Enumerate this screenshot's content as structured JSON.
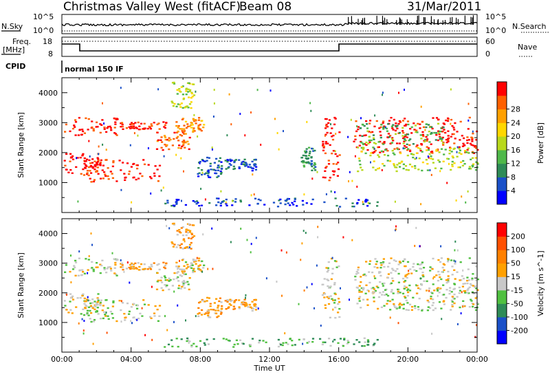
{
  "header": {
    "title": "Christmas Valley West (fitACF)",
    "beam": "Beam 08",
    "date": "31/Mar/2011"
  },
  "strip": {
    "nsky_label": "N.Sky",
    "nsearch_label": "N.Search",
    "nsky_ticks": [
      "10^5",
      "10^0"
    ],
    "nsearch_ticks": [
      "10^5",
      "10^0"
    ],
    "freq_label": [
      "Freq.",
      "[MHz]"
    ],
    "freq_ticks": [
      "18",
      "8"
    ],
    "nave_label": "Nave",
    "nave_ticks": [
      "60",
      "0"
    ],
    "cpid_label": "CPID",
    "cpid_text": "normal 150 IF"
  },
  "chart_data": [
    {
      "type": "heatmap",
      "name": "power",
      "ylabel": "Slant Range [km]",
      "xlabel": "",
      "ylim": [
        0,
        4500
      ],
      "xlim": [
        0,
        24
      ],
      "yticks": [
        1000,
        2000,
        3000,
        4000
      ],
      "colorbar": {
        "label": "Power [dB]",
        "ticks": [
          "4",
          "8",
          "12",
          "16",
          "20",
          "24",
          "28"
        ],
        "colors": [
          "#0000ff",
          "#1a50c8",
          "#2e8b57",
          "#4fb84a",
          "#b8d81c",
          "#ffd700",
          "#ffa000",
          "#ff6000",
          "#ff0000"
        ]
      },
      "regions": [
        {
          "t0": 0.1,
          "t1": 3.4,
          "r0": 2600,
          "r1": 3200,
          "c": 8
        },
        {
          "t0": 0.1,
          "t1": 2.2,
          "r0": 1300,
          "r1": 2000,
          "c": 8
        },
        {
          "t0": 1.2,
          "t1": 5.6,
          "r0": 1050,
          "r1": 1800,
          "c": 8
        },
        {
          "t0": 3.0,
          "t1": 6.0,
          "r0": 2800,
          "r1": 3050,
          "c": 8
        },
        {
          "t0": 5.4,
          "t1": 7.4,
          "r0": 2100,
          "r1": 2700,
          "c": 7
        },
        {
          "t0": 6.5,
          "t1": 8.2,
          "r0": 2700,
          "r1": 3200,
          "c": 6
        },
        {
          "t0": 6.2,
          "t1": 7.6,
          "r0": 3500,
          "r1": 4400,
          "c": 4
        },
        {
          "t0": 7.8,
          "t1": 9.2,
          "r0": 1200,
          "r1": 1900,
          "c": 1
        },
        {
          "t0": 9.4,
          "t1": 11.2,
          "r0": 1400,
          "r1": 1800,
          "c": 1
        },
        {
          "t0": 13.8,
          "t1": 14.6,
          "r0": 1400,
          "r1": 2200,
          "c": 2
        },
        {
          "t0": 15.0,
          "t1": 16.0,
          "r0": 1100,
          "r1": 3200,
          "c": 8
        },
        {
          "t0": 16.8,
          "t1": 24.0,
          "r0": 2000,
          "r1": 3200,
          "c": 8
        },
        {
          "t0": 17.0,
          "t1": 24.0,
          "r0": 1400,
          "r1": 2200,
          "c": 4
        },
        {
          "t0": 17.0,
          "t1": 22.0,
          "r0": 2300,
          "r1": 3000,
          "c": 3
        },
        {
          "t0": 5.8,
          "t1": 18.2,
          "r0": 200,
          "r1": 500,
          "c": 1
        }
      ]
    },
    {
      "type": "heatmap",
      "name": "velocity",
      "ylabel": "Slant Range [km]",
      "xlabel": "Time UT",
      "ylim": [
        0,
        4500
      ],
      "xlim": [
        0,
        24
      ],
      "yticks": [
        1000,
        2000,
        3000,
        4000
      ],
      "xticklabels": [
        "00:00",
        "04:00",
        "08:00",
        "12:00",
        "16:00",
        "20:00",
        "00:00"
      ],
      "colorbar": {
        "label": "Velocity [m s^-1]",
        "ticks": [
          "200",
          "100",
          "50",
          "15",
          "-15",
          "-50",
          "-100",
          "-200"
        ],
        "colors": [
          "#0000ff",
          "#1a50c8",
          "#2e8b57",
          "#50c040",
          "#c8c8c8",
          "#ffa000",
          "#ff8000",
          "#ff5000",
          "#ff0000"
        ]
      },
      "regions": [
        {
          "t0": 0.1,
          "t1": 3.4,
          "r0": 2600,
          "r1": 3200,
          "c": 4
        },
        {
          "t0": 0.1,
          "t1": 2.2,
          "r0": 1300,
          "r1": 2000,
          "c": 4
        },
        {
          "t0": 1.2,
          "t1": 5.6,
          "r0": 1050,
          "r1": 1800,
          "c": 4
        },
        {
          "t0": 3.0,
          "t1": 6.0,
          "r0": 2800,
          "r1": 3050,
          "c": 5
        },
        {
          "t0": 5.4,
          "t1": 7.4,
          "r0": 2100,
          "r1": 2700,
          "c": 4
        },
        {
          "t0": 6.5,
          "t1": 8.2,
          "r0": 2700,
          "r1": 3200,
          "c": 4
        },
        {
          "t0": 6.2,
          "t1": 7.6,
          "r0": 3500,
          "r1": 4400,
          "c": 5
        },
        {
          "t0": 7.8,
          "t1": 9.2,
          "r0": 1200,
          "r1": 1900,
          "c": 5
        },
        {
          "t0": 9.4,
          "t1": 11.2,
          "r0": 1400,
          "r1": 1800,
          "c": 5
        },
        {
          "t0": 15.0,
          "t1": 16.0,
          "r0": 1100,
          "r1": 3200,
          "c": 4
        },
        {
          "t0": 16.8,
          "t1": 24.0,
          "r0": 2000,
          "r1": 3200,
          "c": 4
        },
        {
          "t0": 17.0,
          "t1": 24.0,
          "r0": 1400,
          "r1": 2200,
          "c": 4
        },
        {
          "t0": 5.8,
          "t1": 18.2,
          "r0": 200,
          "r1": 500,
          "c": 3
        }
      ]
    }
  ]
}
